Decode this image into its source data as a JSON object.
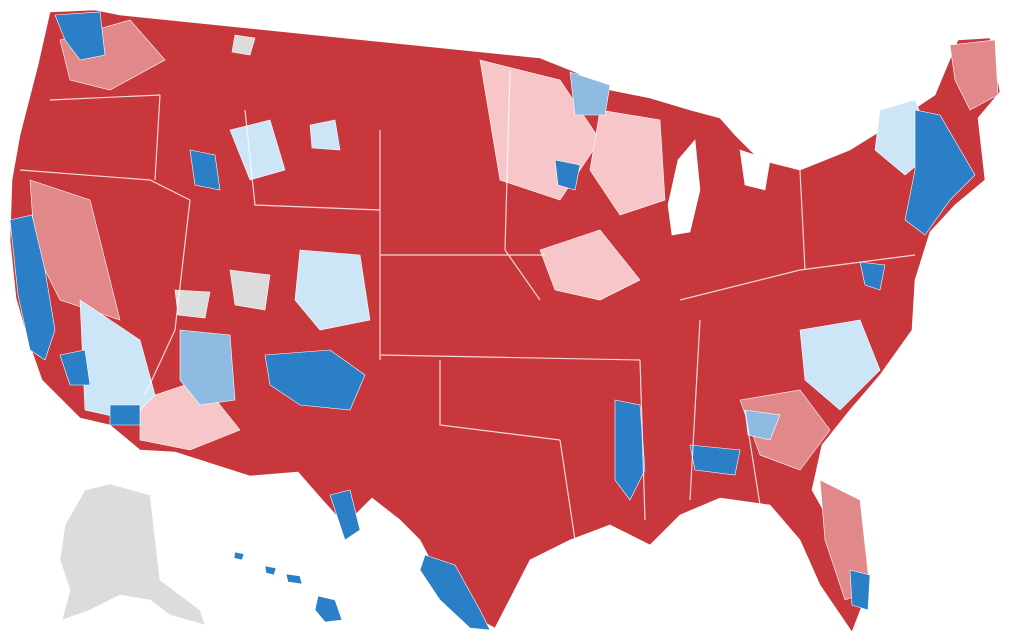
{
  "map": {
    "palette": [
      "#c8373b",
      "#e0888a",
      "#f6c6c8",
      "#cce5f7",
      "#8fbbe3",
      "#2a7fc6",
      "#dcdcdc",
      "#ffffff"
    ]
  }
}
